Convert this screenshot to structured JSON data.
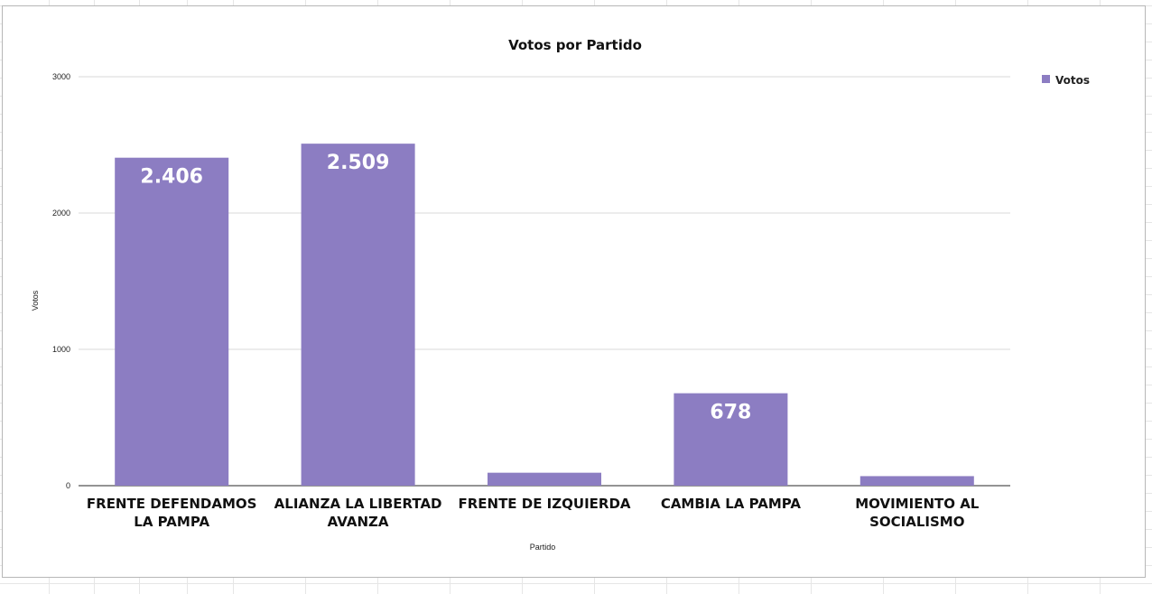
{
  "colors": {
    "bar": "#8c7dc2",
    "gridline": "#d9d9d9",
    "axis": "#555555",
    "sheet_grid": "#e6e6e6"
  },
  "chart_data": {
    "type": "bar",
    "title": "Votos por Partido",
    "xlabel": "Partido",
    "ylabel": "Votos",
    "categories": [
      [
        "FRENTE DEFENDAMOS",
        "LA PAMPA"
      ],
      [
        "ALIANZA LA LIBERTAD",
        "AVANZA"
      ],
      [
        "FRENTE DE IZQUIERDA"
      ],
      [
        "CAMBIA LA PAMPA"
      ],
      [
        "MOVIMIENTO AL",
        "SOCIALISMO"
      ]
    ],
    "series": [
      {
        "name": "Votos",
        "values": [
          2406,
          2509,
          95,
          678,
          70
        ],
        "data_labels": [
          "2.406",
          "2.509",
          "",
          "678",
          ""
        ]
      }
    ],
    "ylim": [
      0,
      3000
    ],
    "yticks": [
      "0",
      "1000",
      "2000",
      "3000"
    ],
    "ytick_values": [
      0,
      1000,
      2000,
      3000
    ],
    "grid": true,
    "legend_position": "top-right"
  }
}
